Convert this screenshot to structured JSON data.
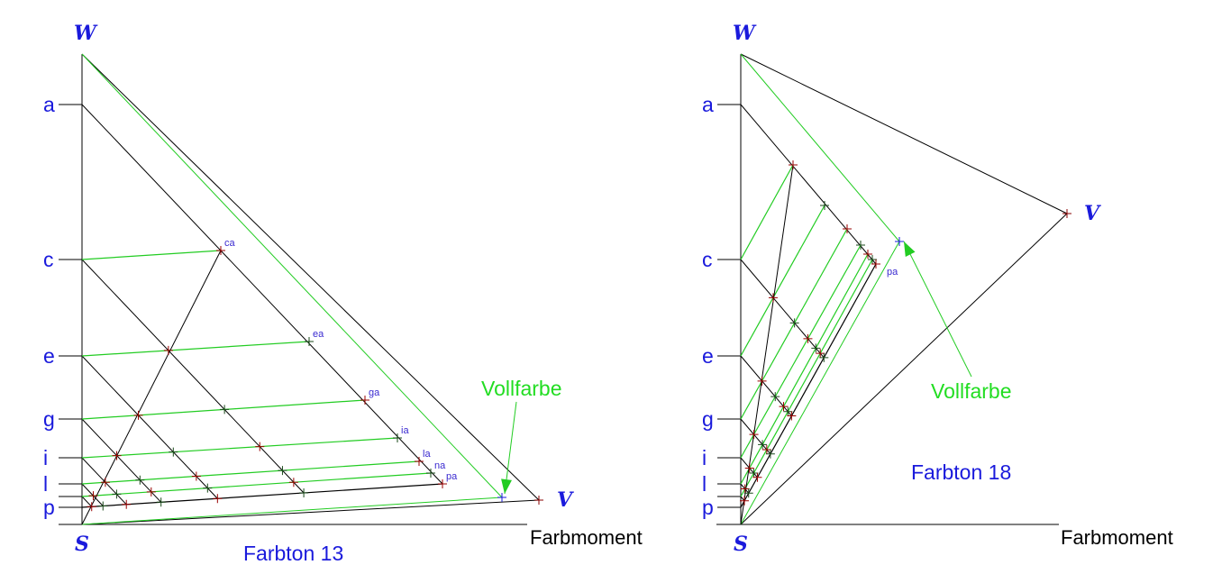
{
  "colors": {
    "label_blue": "#1a1adc",
    "green_line": "#22cc22",
    "black_line": "#000000",
    "cross_red": "#aa0000"
  },
  "diagrams": [
    {
      "caption": "Farbton 13",
      "axis_title": "Farbmoment",
      "vertex_white": "W",
      "vertex_full": "V",
      "vertex_black": "S",
      "tick_labels": [
        "a",
        "c",
        "e",
        "g",
        "i",
        "l",
        "",
        "p"
      ],
      "point_labels": [
        "ca",
        "ea",
        "ga",
        "ia",
        "la",
        "na",
        "pa"
      ],
      "annotation": "Vollfarbe"
    },
    {
      "caption": "Farbton 18",
      "axis_title": "Farbmoment",
      "vertex_white": "W",
      "vertex_full": "V",
      "vertex_black": "S",
      "tick_labels": [
        "a",
        "c",
        "e",
        "g",
        "i",
        "l",
        "",
        "p"
      ],
      "point_labels": [
        "",
        "",
        "",
        "",
        "",
        "",
        "pa"
      ],
      "annotation": "Vollfarbe"
    }
  ]
}
